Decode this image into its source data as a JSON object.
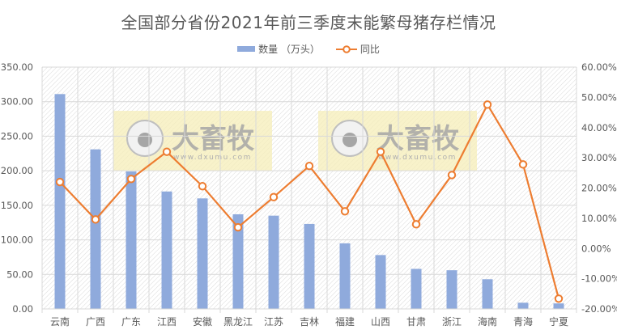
{
  "chart_data": {
    "type": "bar+line",
    "title": "全国部分省份2021年前三季度末能繁母猪存栏情况",
    "categories": [
      "云南",
      "广西",
      "广东",
      "江西",
      "安徽",
      "黑龙江",
      "江苏",
      "吉林",
      "福建",
      "山西",
      "甘肃",
      "浙江",
      "海南",
      "青海",
      "宁夏"
    ],
    "series": [
      {
        "name": "数量 （万头）",
        "type": "bar",
        "axis": "left",
        "color": "#8faadc",
        "values": [
          311,
          231,
          199,
          170,
          160,
          137,
          135,
          123,
          95,
          78,
          58,
          56,
          43,
          9,
          8
        ]
      },
      {
        "name": "同比",
        "type": "line",
        "axis": "right",
        "color": "#ed7d31",
        "unit": "%",
        "values": [
          22.0,
          9.6,
          23.0,
          32.0,
          20.6,
          7.0,
          17.0,
          27.3,
          12.3,
          32.0,
          8.0,
          24.3,
          47.6,
          27.8,
          -16.6
        ]
      }
    ],
    "y_left": {
      "min": 0,
      "max": 350,
      "step": 50,
      "tick_labels": [
        "0.00",
        "50.00",
        "100.00",
        "150.00",
        "200.00",
        "250.00",
        "300.00",
        "350.00"
      ]
    },
    "y_right": {
      "min": -20,
      "max": 60,
      "step": 10,
      "tick_labels": [
        "-20.00%",
        "-10.00%",
        "0.00%",
        "10.00%",
        "20.00%",
        "30.00%",
        "40.00%",
        "50.00%",
        "60.00%"
      ]
    },
    "grid": true,
    "legend_position": "top",
    "xlabel": "",
    "ylabel": ""
  },
  "legend": {
    "bar_label": "数量 （万头）",
    "line_label": "同比"
  },
  "watermark": {
    "brand": "大畜牧",
    "url": "www.dxumu.com"
  }
}
